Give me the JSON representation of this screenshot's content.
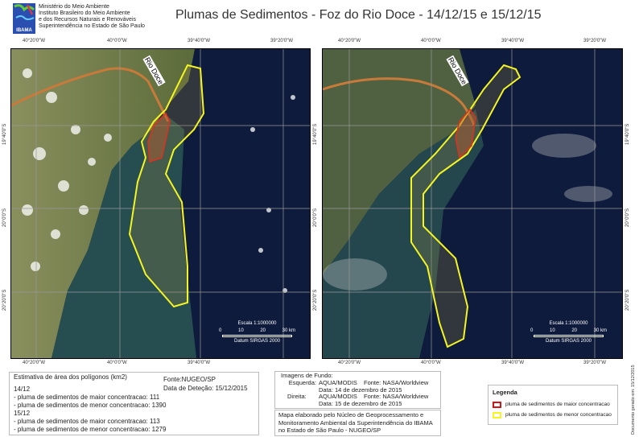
{
  "header": {
    "org_lines": [
      "Ministério do Meio Ambiente",
      "Instituto Brasileiro do Meio Ambiente",
      "e dos Recursos Naturais e Renováveis",
      "Superintendência no Estado de São Paulo"
    ],
    "logo_text": "IBAMA",
    "title": "Plumas de Sedimentos - Foz do Rio Doce - 14/12/15 e 15/12/15"
  },
  "colors": {
    "ocean": "#0d1a3a",
    "land": "#6e7c4a",
    "high_concentration": "#e0301e",
    "low_concentration": "#f5f522",
    "river": "#c87a3a"
  },
  "longitude_ticks": [
    "40°20'0\"W",
    "40°0'0\"W",
    "39°40'0\"W",
    "39°20'0\"W"
  ],
  "latitude_ticks": [
    "19°40'0\"S",
    "20°0'0\"S",
    "20°20'0\"S"
  ],
  "maps": [
    {
      "river_label": "Rio Doce",
      "scale": "Escala 1:1000000",
      "scale_ticks": [
        "0",
        "10",
        "20",
        "30 km"
      ],
      "datum": "Datum SIRGAS 2000"
    },
    {
      "river_label": "Rio Doce",
      "scale": "Escala 1:1000000",
      "scale_ticks": [
        "0",
        "10",
        "20",
        "30 km"
      ],
      "datum": "Datum SIRGAS 2000"
    }
  ],
  "area_box": {
    "title": "Estimativa de área dos polígonos (km2)",
    "source": "Fonte:NUGEO/SP",
    "detection": "Data de Deteção:  15/12/2015",
    "lines": [
      "14/12",
      "- pluma de sedimentos de maior concentracao: 111",
      "- pluma de sedimentos de menor concentracao: 1390",
      "15/12",
      "- pluma de sedimentos de maior concentracao: 113",
      "- pluma de sedimentos de menor concentracao: 1279"
    ]
  },
  "images_box": {
    "title": "Imagens de Fundo:",
    "left_label": "Esquerda:",
    "left_sensor": "AQUA/MODIS",
    "left_source": "Fonte: NASA/Worldview",
    "left_date": "Data:  14 de dezembro de 2015",
    "right_label": "Direita:",
    "right_sensor": "AQUA/MODIS",
    "right_source": "Fonte: NASA/Worldview",
    "right_date": "Data:  15 de dezembro de 2015"
  },
  "credit_box": {
    "text": "Mapa elaborado pelo Núcleo de Geoprocessamento e Monitoramento Ambiental da Superintendência do IBAMA no Estado de São Paulo - NUGEO/SP"
  },
  "legend": {
    "title": "Legenda",
    "items": [
      {
        "label": "pluma de sedimentos de maior concentracao",
        "color": "#d01818"
      },
      {
        "label": "pluma de sedimentos de menor concentracao",
        "color": "#f5f522"
      }
    ]
  },
  "generated": "Documento gerado em: 15/12/2015"
}
